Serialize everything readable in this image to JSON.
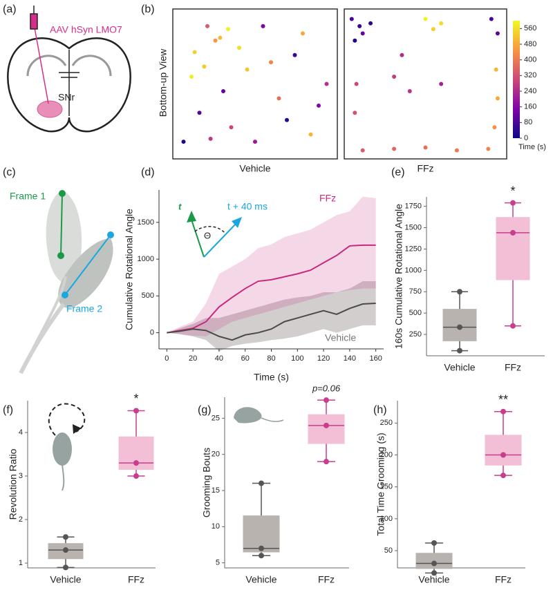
{
  "panel_labels": [
    "(a)",
    "(b)",
    "(c)",
    "(d)",
    "(e)",
    "(f)",
    "(g)",
    "(h)"
  ],
  "diagram_a": {
    "label": "AAV hSyn LMO7",
    "region": "SNr"
  },
  "diagram_c": {
    "frame1": "Frame 1",
    "frame2": "Frame 2"
  },
  "chart_data": [
    {
      "type": "trajectory",
      "ylabel": "Bottom-up View",
      "colorbar_label": "Time (s)",
      "clim": [
        0,
        600
      ],
      "cticks": [
        0,
        80,
        160,
        240,
        320,
        400,
        480,
        560
      ],
      "panels": [
        {
          "title": "Vehicle",
          "x": [
            5,
            15,
            25,
            35,
            45,
            55,
            65,
            75,
            85,
            95,
            10,
            20,
            30,
            40,
            50,
            60,
            70,
            80,
            90,
            12,
            22,
            33,
            18,
            28
          ],
          "y": [
            10,
            30,
            80,
            20,
            60,
            90,
            40,
            70,
            15,
            50,
            55,
            90,
            45,
            75,
            10,
            65,
            25,
            85,
            35,
            72,
            12,
            88,
            62,
            82
          ],
          "time": [
            20,
            100,
            450,
            300,
            520,
            150,
            380,
            60,
            500,
            250,
            580,
            340,
            120,
            560,
            200,
            420,
            30,
            480,
            160,
            540,
            270,
            590,
            530,
            510
          ]
        },
        {
          "title": "FFz",
          "x": [
            3,
            8,
            10,
            5,
            15,
            50,
            60,
            55,
            95,
            96,
            94,
            90,
            70,
            50,
            30,
            10,
            5,
            6,
            30,
            40,
            35,
            60,
            96,
            92
          ],
          "y": [
            95,
            90,
            85,
            80,
            92,
            95,
            92,
            88,
            60,
            40,
            20,
            5,
            4,
            6,
            5,
            4,
            30,
            50,
            55,
            45,
            70,
            50,
            85,
            95
          ],
          "time": [
            80,
            60,
            120,
            20,
            40,
            590,
            560,
            540,
            500,
            480,
            440,
            420,
            400,
            380,
            360,
            340,
            320,
            300,
            280,
            260,
            240,
            220,
            100,
            80
          ]
        }
      ]
    },
    {
      "type": "line",
      "xlabel": "Time (s)",
      "ylabel": "Cumulative Rotational Angle",
      "annotations": [
        "t",
        "t + 40 ms",
        "Θ"
      ],
      "x": [
        0,
        10,
        20,
        30,
        40,
        50,
        60,
        70,
        80,
        90,
        100,
        110,
        120,
        130,
        140,
        150,
        160
      ],
      "xlim": [
        -6,
        166
      ],
      "xticks": [
        0,
        20,
        40,
        60,
        80,
        100,
        120,
        140,
        160
      ],
      "ylim": [
        -220,
        1940
      ],
      "yticks": [
        0,
        500,
        1000,
        1500
      ],
      "series": [
        {
          "name": "FFz",
          "color": "#c8287f",
          "values": [
            0,
            30,
            60,
            150,
            350,
            480,
            600,
            700,
            720,
            760,
            800,
            850,
            950,
            1050,
            1180,
            1190,
            1190
          ],
          "lower": [
            0,
            -20,
            -40,
            -50,
            50,
            150,
            200,
            250,
            300,
            350,
            400,
            450,
            500,
            550,
            580,
            600,
            600
          ],
          "upper": [
            0,
            80,
            150,
            400,
            800,
            900,
            1000,
            1150,
            1200,
            1300,
            1350,
            1400,
            1500,
            1600,
            1650,
            1850,
            1830
          ]
        },
        {
          "name": "Vehicle",
          "color": "#4a4a4a",
          "values": [
            0,
            20,
            50,
            30,
            -50,
            -100,
            -30,
            0,
            50,
            150,
            200,
            250,
            300,
            250,
            330,
            390,
            400
          ],
          "lower": [
            0,
            -20,
            -50,
            -100,
            -250,
            -180,
            -150,
            -130,
            -100,
            -80,
            -50,
            0,
            50,
            0,
            50,
            100,
            100
          ],
          "upper": [
            0,
            60,
            120,
            200,
            200,
            250,
            300,
            350,
            400,
            450,
            480,
            500,
            550,
            550,
            600,
            700,
            700
          ]
        }
      ]
    },
    {
      "type": "box",
      "ylabel": "160s Cumulative Rotational Angle",
      "annotation": "*",
      "categories": [
        "Vehicle",
        "FFz"
      ],
      "ylim": [
        0,
        1860
      ],
      "yticks": [
        250,
        500,
        750,
        1000,
        1250,
        1500,
        1750
      ],
      "series": [
        {
          "color": "#555555",
          "fill": "#b8b3ae",
          "whislo": 60,
          "q1": 175,
          "median": 335,
          "q3": 545,
          "whishi": 750,
          "points": [
            60,
            335,
            750
          ]
        },
        {
          "color": "#c93d8d",
          "fill": "#f2bfd6",
          "whislo": 350,
          "q1": 890,
          "median": 1440,
          "q3": 1620,
          "whishi": 1790,
          "points": [
            350,
            1440,
            1790
          ]
        }
      ]
    },
    {
      "type": "box",
      "ylabel": "Revolution Ratio",
      "annotation": "*",
      "categories": [
        "Vehicle",
        "FFz"
      ],
      "ylim": [
        0.89,
        4.73
      ],
      "yticks": [
        1,
        2,
        3,
        4
      ],
      "series": [
        {
          "color": "#555555",
          "fill": "#b8b3ae",
          "whislo": 0.9,
          "q1": 1.1,
          "median": 1.3,
          "q3": 1.45,
          "whishi": 1.6,
          "points": [
            0.9,
            1.3,
            1.6
          ]
        },
        {
          "color": "#c93d8d",
          "fill": "#f2bfd6",
          "whislo": 3.0,
          "q1": 3.15,
          "median": 3.3,
          "q3": 3.9,
          "whishi": 4.5,
          "points": [
            3.0,
            3.3,
            4.5
          ]
        }
      ]
    },
    {
      "type": "box",
      "ylabel": "Grooming Bouts",
      "annotation": "p=0.06",
      "categories": [
        "Vehicle",
        "FFz"
      ],
      "ylim": [
        4.3,
        27.9
      ],
      "yticks": [
        5,
        10,
        15,
        20,
        25
      ],
      "series": [
        {
          "color": "#555555",
          "fill": "#b8b3ae",
          "whislo": 6,
          "q1": 6.5,
          "median": 7,
          "q3": 11.5,
          "whishi": 16,
          "points": [
            6,
            7,
            16
          ]
        },
        {
          "color": "#c93d8d",
          "fill": "#f2bfd6",
          "whislo": 19,
          "q1": 21.5,
          "median": 24,
          "q3": 25.5,
          "whishi": 27.5,
          "points": [
            19,
            24,
            27.5
          ]
        }
      ]
    },
    {
      "type": "box",
      "ylabel": "Total Time Grooming (s)",
      "annotation": "**",
      "categories": [
        "Vehicle",
        "FFz"
      ],
      "ylim": [
        23,
        285
      ],
      "yticks": [
        50,
        100,
        150,
        200,
        250
      ],
      "series": [
        {
          "color": "#555555",
          "fill": "#b8b3ae",
          "whislo": 15,
          "q1": 22,
          "median": 30,
          "q3": 46,
          "whishi": 62,
          "points": [
            15,
            30,
            62
          ]
        },
        {
          "color": "#c93d8d",
          "fill": "#f2bfd6",
          "whislo": 168,
          "q1": 184,
          "median": 200,
          "q3": 231,
          "whishi": 268,
          "points": [
            168,
            200,
            268
          ]
        }
      ]
    }
  ]
}
